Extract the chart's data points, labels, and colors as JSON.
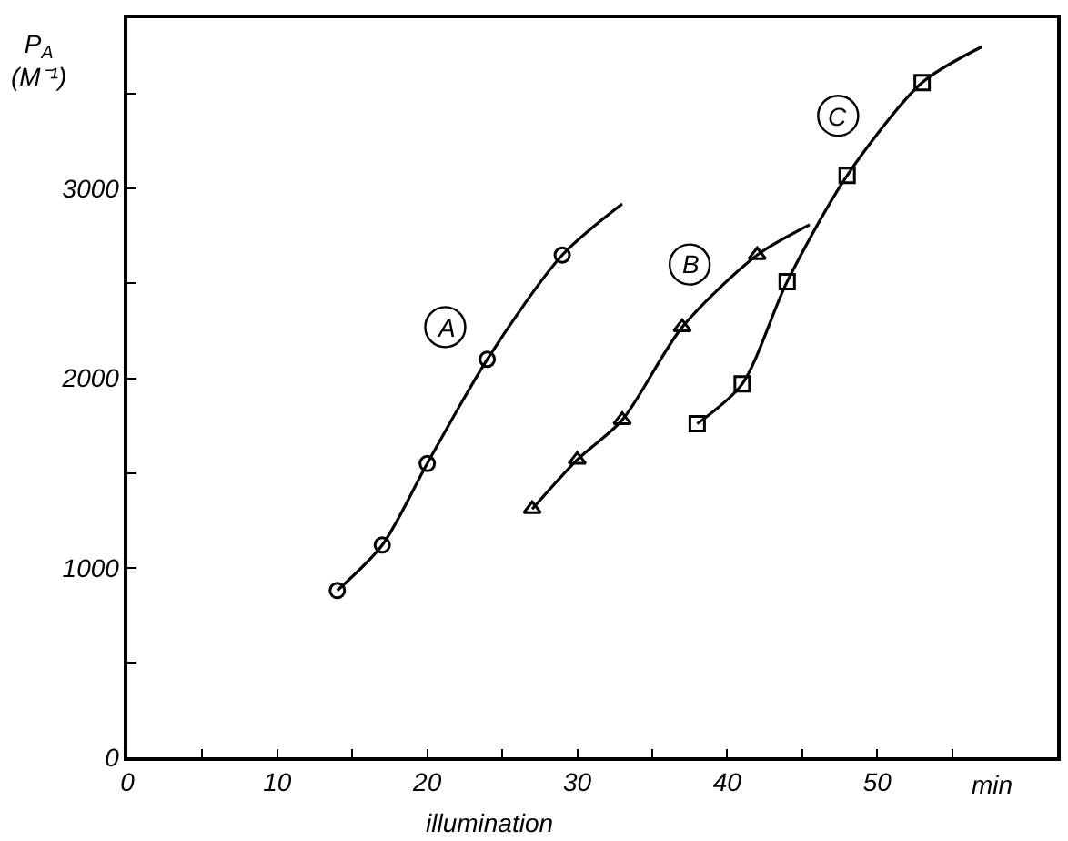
{
  "chart_data": {
    "type": "scatter",
    "xlabel": "illumination",
    "ylabel": "P$_{A}$ (M⁻¹)",
    "xlim": [
      0,
      62
    ],
    "ylim": [
      0,
      3900
    ],
    "xticks": [
      0,
      {
        "value": 5,
        "label": null
      },
      10,
      {
        "value": 15,
        "label": null
      },
      20,
      {
        "value": 25,
        "label": null
      },
      30,
      {
        "value": 35,
        "label": null
      },
      40,
      {
        "value": 45,
        "label": null
      },
      50,
      {
        "value": 55,
        "label": null
      }
    ],
    "yticks": [
      0,
      {
        "value": 500,
        "label": null
      },
      1000,
      {
        "value": 1500,
        "label": null
      },
      2000,
      {
        "value": 2500,
        "label": null
      },
      3000,
      {
        "value": 3500,
        "label": null
      }
    ],
    "series": [
      {
        "marker": "circle",
        "color": "#000000",
        "x": [
          14,
          17,
          20,
          24,
          29
        ],
        "values": [
          880,
          1120,
          1550,
          2100,
          2650
        ]
      },
      {
        "marker": "triangle",
        "color": "#000000",
        "x": [
          27,
          30,
          33,
          37,
          42
        ],
        "values": [
          1310,
          1570,
          1780,
          2270,
          2650
        ]
      },
      {
        "marker": "square",
        "color": "#000000",
        "x": [
          38,
          41,
          44,
          48,
          53
        ],
        "values": [
          1760,
          1970,
          2510,
          3070,
          3560
        ]
      },
      {
        "type": "line",
        "marker": "none",
        "color": "#000000",
        "x": [
          14,
          17,
          20,
          24,
          29,
          33
        ],
        "values": [
          880,
          1120,
          1550,
          2100,
          2650,
          2920
        ]
      },
      {
        "type": "line",
        "marker": "none",
        "color": "#000000",
        "x": [
          27,
          30,
          33,
          37,
          42,
          45.5
        ],
        "values": [
          1310,
          1570,
          1780,
          2270,
          2650,
          2810
        ]
      },
      {
        "type": "line",
        "marker": "none",
        "color": "#000000",
        "x": [
          38,
          41,
          44,
          48,
          53,
          57
        ],
        "values": [
          1760,
          1970,
          2510,
          3070,
          3560,
          3750
        ]
      }
    ],
    "annotations": [
      {
        "text": "A",
        "x": 21.2,
        "y": 2270
      },
      {
        "text": "B",
        "x": 37.5,
        "y": 2600
      },
      {
        "text": "C",
        "x": 47.4,
        "y": 3385
      },
      "min"
    ]
  }
}
